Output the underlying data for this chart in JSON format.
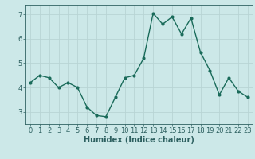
{
  "x": [
    0,
    1,
    2,
    3,
    4,
    5,
    6,
    7,
    8,
    9,
    10,
    11,
    12,
    13,
    14,
    15,
    16,
    17,
    18,
    19,
    20,
    21,
    22,
    23
  ],
  "y": [
    4.2,
    4.5,
    4.4,
    4.0,
    4.2,
    4.0,
    3.2,
    2.85,
    2.8,
    3.6,
    4.4,
    4.5,
    5.2,
    7.05,
    6.6,
    6.9,
    6.2,
    6.85,
    5.45,
    4.7,
    3.7,
    4.4,
    3.85,
    3.6
  ],
  "line_color": "#1a6b5a",
  "marker": "o",
  "marker_size": 2.0,
  "bg_color": "#cce8e8",
  "grid_color": "#b8d4d4",
  "axes_color": "#2d6060",
  "xlabel": "Humidex (Indice chaleur)",
  "xlim": [
    -0.5,
    23.5
  ],
  "ylim": [
    2.5,
    7.4
  ],
  "yticks": [
    3,
    4,
    5,
    6,
    7
  ],
  "xticks": [
    0,
    1,
    2,
    3,
    4,
    5,
    6,
    7,
    8,
    9,
    10,
    11,
    12,
    13,
    14,
    15,
    16,
    17,
    18,
    19,
    20,
    21,
    22,
    23
  ],
  "xlabel_fontsize": 7.0,
  "tick_fontsize": 6.0,
  "line_width": 1.0
}
